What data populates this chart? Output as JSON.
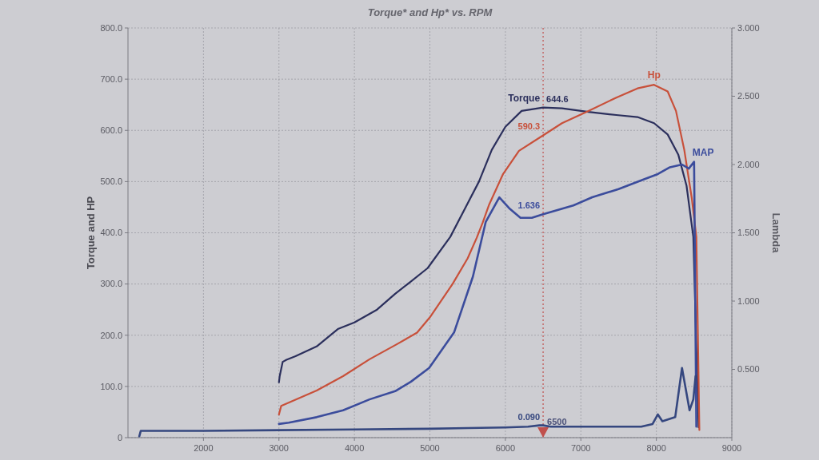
{
  "chart_data": {
    "type": "line",
    "title": "Torque* and Hp* vs. RPM",
    "ylabel": "Torque and HP",
    "y2label": "Lambda",
    "xlim": [
      1000,
      9000
    ],
    "xticks": [
      2000,
      3000,
      4000,
      5000,
      6000,
      7000,
      8000,
      9000
    ],
    "ylim": [
      0,
      800
    ],
    "yticks": [
      0,
      {
        "value": 100,
        "label": "100.0"
      },
      {
        "value": 200,
        "label": "200.0"
      },
      {
        "value": 300,
        "label": "300.0"
      },
      {
        "value": 400,
        "label": "400.0"
      },
      {
        "value": 500,
        "label": "500.0"
      },
      {
        "value": 600,
        "label": "600.0"
      },
      {
        "value": 700,
        "label": "700.0"
      },
      {
        "value": 800,
        "label": "800.0"
      }
    ],
    "y2lim": [
      0,
      3
    ],
    "y2ticks": [
      {
        "value": 0.5,
        "label": "0.500"
      },
      {
        "value": 1,
        "label": "1.000"
      },
      {
        "value": 1.5,
        "label": "1.500"
      },
      {
        "value": 2,
        "label": "2.000"
      },
      {
        "value": 2.5,
        "label": "2.500"
      },
      {
        "value": 3,
        "label": "3.000"
      }
    ],
    "grid": true,
    "ref_lines": [
      {
        "axis": "x",
        "value": 6500,
        "label": "6500",
        "color": "#c0504d",
        "line_style": "dotted"
      }
    ],
    "series": [
      {
        "name": "Torque",
        "color": "#2b2f5c",
        "x": [
          3000,
          3010,
          3050,
          3100,
          3220,
          3500,
          3780,
          4000,
          4300,
          4540,
          4750,
          4970,
          5270,
          5650,
          5820,
          6000,
          6215,
          6500,
          6750,
          7100,
          7470,
          7750,
          7970,
          8150,
          8290,
          8400,
          8490,
          8560
        ],
        "values": [
          108,
          120,
          148,
          152,
          159,
          178,
          212,
          225,
          250,
          281,
          305,
          331,
          392,
          500,
          562,
          607,
          638,
          644.6,
          643,
          636,
          630,
          626,
          614,
          592,
          553,
          492,
          392,
          20
        ],
        "value_labels": [
          null,
          null,
          null,
          null,
          null,
          null,
          null,
          null,
          null,
          null,
          null,
          null,
          null,
          null,
          null,
          null,
          null,
          "644.6",
          null,
          null,
          null,
          null,
          null,
          null,
          null,
          null,
          null,
          null
        ]
      },
      {
        "name": "Hp",
        "color": "#c8503a",
        "x": [
          3000,
          3030,
          3140,
          3500,
          3850,
          4200,
          4570,
          4830,
          5000,
          5300,
          5500,
          5620,
          5700,
          5785,
          5970,
          6180,
          6500,
          6750,
          7100,
          7470,
          7750,
          7970,
          8150,
          8260,
          8370,
          8470,
          8530,
          8570
        ],
        "values": [
          45,
          62,
          69,
          92,
          120,
          153,
          183,
          205,
          235,
          300,
          350,
          390,
          420,
          455,
          515,
          560,
          590.3,
          614,
          638,
          664,
          682,
          689,
          676,
          638,
          562,
          467,
          392,
          15
        ],
        "value_labels": [
          null,
          null,
          null,
          null,
          null,
          null,
          null,
          null,
          null,
          null,
          null,
          null,
          null,
          null,
          null,
          null,
          "590.3",
          null,
          null,
          null,
          null,
          null,
          null,
          null,
          null,
          null,
          null,
          null
        ]
      },
      {
        "name": "MAP",
        "color": "#3b4c9c",
        "axis": "y2",
        "x": [
          3000,
          3130,
          3500,
          3850,
          4200,
          4540,
          4750,
          4990,
          5320,
          5570,
          5740,
          5920,
          6050,
          6200,
          6350,
          6500,
          6900,
          7150,
          7500,
          7830,
          8020,
          8180,
          8340,
          8430,
          8500,
          8530
        ],
        "values": [
          0.1,
          0.11,
          0.15,
          0.2,
          0.28,
          0.34,
          0.41,
          0.51,
          0.77,
          1.18,
          1.58,
          1.76,
          1.68,
          1.61,
          1.61,
          1.636,
          1.7,
          1.76,
          1.82,
          1.89,
          1.93,
          1.98,
          2.0,
          1.97,
          2.02,
          0.08
        ],
        "value_labels": [
          null,
          null,
          null,
          null,
          null,
          null,
          null,
          null,
          null,
          null,
          null,
          null,
          null,
          null,
          null,
          "1.636",
          null,
          null,
          null,
          null,
          null,
          null,
          null,
          null,
          null,
          null
        ]
      },
      {
        "color": "#35477f",
        "axis": "y2",
        "x": [
          1150,
          1170,
          2000,
          3000,
          4000,
          5000,
          5500,
          6000,
          6300,
          6450,
          6500,
          6600,
          7000,
          7500,
          7800,
          7950,
          8020,
          8080,
          8250,
          8340,
          8440,
          8490,
          8520
        ],
        "values": [
          0.01,
          0.05,
          0.05,
          0.055,
          0.06,
          0.065,
          0.07,
          0.075,
          0.08,
          0.09,
          0.09,
          0.08,
          0.08,
          0.08,
          0.08,
          0.1,
          0.17,
          0.12,
          0.15,
          0.51,
          0.2,
          0.28,
          0.45
        ],
        "value_labels": [
          null,
          null,
          null,
          null,
          null,
          null,
          null,
          null,
          null,
          null,
          "0.090",
          null,
          null,
          null,
          null,
          null,
          null,
          null,
          null,
          null,
          null,
          null,
          null
        ]
      }
    ]
  }
}
